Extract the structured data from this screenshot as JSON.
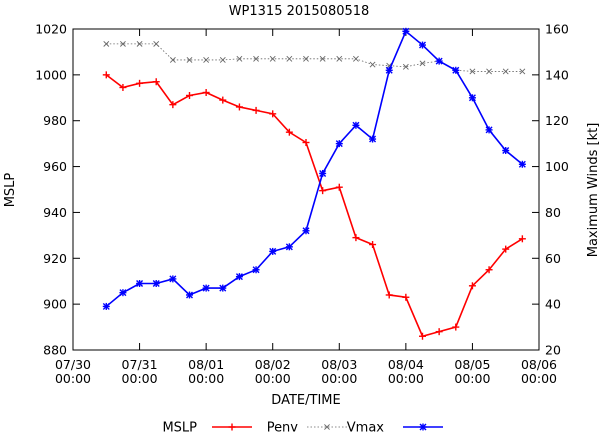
{
  "chart_data": {
    "type": "line",
    "title": "WP1315 2015080518",
    "xlabel": "DATE/TIME",
    "ylabel_left": "MSLP",
    "ylabel_right": "Maximum Winds [kt]",
    "x_ticks": [
      {
        "t": 0,
        "label1": "07/30",
        "label2": "00:00"
      },
      {
        "t": 24,
        "label1": "07/31",
        "label2": "00:00"
      },
      {
        "t": 48,
        "label1": "08/01",
        "label2": "00:00"
      },
      {
        "t": 72,
        "label1": "08/02",
        "label2": "00:00"
      },
      {
        "t": 96,
        "label1": "08/03",
        "label2": "00:00"
      },
      {
        "t": 120,
        "label1": "08/04",
        "label2": "00:00"
      },
      {
        "t": 144,
        "label1": "08/05",
        "label2": "00:00"
      },
      {
        "t": 168,
        "label1": "08/06",
        "label2": "00:00"
      }
    ],
    "xlim": [
      0,
      168
    ],
    "ylim_left": [
      880,
      1020
    ],
    "ylim_right": [
      20,
      160
    ],
    "y_ticks_left": [
      880,
      900,
      920,
      940,
      960,
      980,
      1000,
      1020
    ],
    "y_ticks_right": [
      20,
      40,
      60,
      80,
      100,
      120,
      140,
      160
    ],
    "x_hours": [
      12,
      18,
      24,
      30,
      36,
      42,
      48,
      54,
      60,
      66,
      72,
      78,
      84,
      90,
      96,
      102,
      108,
      114,
      120,
      126,
      132,
      138,
      144,
      150,
      156,
      162
    ],
    "series": [
      {
        "name": "MSLP",
        "axis": "left",
        "color": "#ff0000",
        "style": "solid-plus",
        "values": [
          1000,
          994.5,
          996.3,
          997,
          987,
          991,
          992.3,
          989,
          986,
          984.5,
          983,
          975,
          970.5,
          949.5,
          951,
          929,
          926,
          904,
          903,
          886,
          888,
          890,
          908,
          915,
          924,
          928.5
        ]
      },
      {
        "name": "Penv",
        "axis": "left",
        "color": "#666666",
        "style": "dotted-x",
        "values": [
          1013.5,
          1013.5,
          1013.5,
          1013.5,
          1006.5,
          1006.5,
          1006.5,
          1006.5,
          1007,
          1007,
          1007,
          1007,
          1007,
          1007,
          1007,
          1007,
          1004.5,
          1004,
          1003.5,
          1005,
          1006,
          1002,
          1001.5,
          1001.5,
          1001.5,
          1001.5
        ]
      },
      {
        "name": "Vmax",
        "axis": "right",
        "color": "#0000ff",
        "style": "solid-star",
        "values": [
          39,
          45,
          49,
          49,
          51,
          44,
          47,
          47,
          52,
          55,
          63,
          65,
          72,
          97,
          110,
          118,
          112,
          142,
          159,
          153,
          146,
          142,
          130,
          116,
          107,
          101
        ]
      }
    ],
    "legend": {
      "placement": "bottom",
      "entries": [
        {
          "label": "MSLP",
          "series": ""
        },
        {
          "label": "Penv",
          "series": "MSLP"
        },
        {
          "label": "Vmax",
          "series": "Penv"
        },
        {
          "label": "",
          "series": "Vmax"
        }
      ]
    },
    "grid": false
  }
}
